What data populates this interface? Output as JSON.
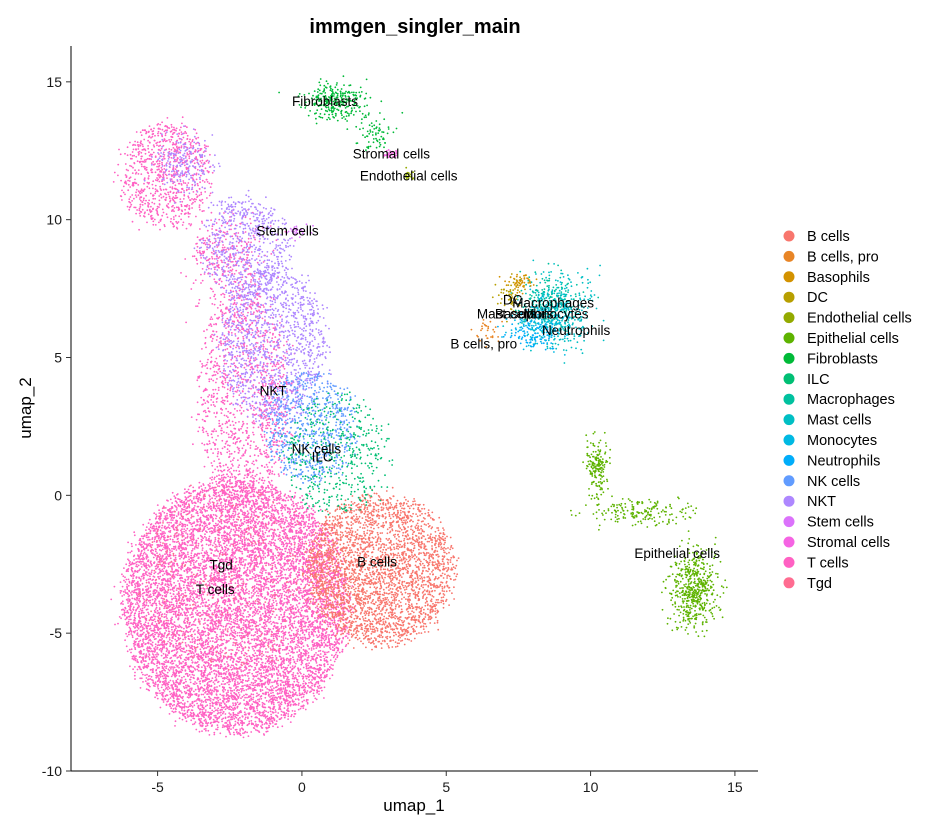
{
  "chart_data": {
    "type": "scatter",
    "title": "immgen_singler_main",
    "xlabel": "umap_1",
    "ylabel": "umap_2",
    "xlim": [
      -8.0,
      15.8
    ],
    "ylim": [
      -10.0,
      16.3
    ],
    "xticks": [
      -5,
      0,
      5,
      10,
      15
    ],
    "yticks": [
      -10,
      -5,
      0,
      5,
      10,
      15
    ],
    "grid": false,
    "legend_position": "right",
    "legend": [
      {
        "name": "B cells",
        "color": "#F8766D"
      },
      {
        "name": "B cells, pro",
        "color": "#E88526"
      },
      {
        "name": "Basophils",
        "color": "#D39200"
      },
      {
        "name": "DC",
        "color": "#B79F00"
      },
      {
        "name": "Endothelial cells",
        "color": "#93AA00"
      },
      {
        "name": "Epithelial cells",
        "color": "#5EB300"
      },
      {
        "name": "Fibroblasts",
        "color": "#00BA38"
      },
      {
        "name": "ILC",
        "color": "#00BF74"
      },
      {
        "name": "Macrophages",
        "color": "#00C19F"
      },
      {
        "name": "Mast cells",
        "color": "#00BFC4"
      },
      {
        "name": "Monocytes",
        "color": "#00B9E3"
      },
      {
        "name": "Neutrophils",
        "color": "#00ADFA"
      },
      {
        "name": "NK cells",
        "color": "#619CFF"
      },
      {
        "name": "NKT",
        "color": "#AE87FF"
      },
      {
        "name": "Stem cells",
        "color": "#DB72FB"
      },
      {
        "name": "Stromal cells",
        "color": "#F564E3"
      },
      {
        "name": "T cells",
        "color": "#FF61C3"
      },
      {
        "name": "Tgd",
        "color": "#FF6C91"
      }
    ],
    "annotations": [
      {
        "text": "Fibroblasts",
        "x": 0.8,
        "y": 14.3
      },
      {
        "text": "Stromal cells",
        "x": 3.1,
        "y": 12.4
      },
      {
        "text": "Endothelial cells",
        "x": 3.7,
        "y": 11.6
      },
      {
        "text": "Stem cells",
        "x": -0.5,
        "y": 9.6
      },
      {
        "text": "DC",
        "x": 7.3,
        "y": 7.1
      },
      {
        "text": "Macrophages",
        "x": 8.7,
        "y": 7.0
      },
      {
        "text": "Mast cells",
        "x": 7.1,
        "y": 6.6
      },
      {
        "text": "Basophils",
        "x": 7.7,
        "y": 6.6
      },
      {
        "text": "Monocytes",
        "x": 8.8,
        "y": 6.6
      },
      {
        "text": "Neutrophils",
        "x": 9.5,
        "y": 6.0
      },
      {
        "text": "B cells, pro",
        "x": 6.3,
        "y": 5.5
      },
      {
        "text": "NKT",
        "x": -1.0,
        "y": 3.8
      },
      {
        "text": "NK cells",
        "x": 0.5,
        "y": 1.7
      },
      {
        "text": "ILC",
        "x": 0.7,
        "y": 1.4
      },
      {
        "text": "B cells",
        "x": 2.6,
        "y": -2.4
      },
      {
        "text": "Tgd",
        "x": -2.8,
        "y": -2.5
      },
      {
        "text": "T cells",
        "x": -3.0,
        "y": -3.4
      },
      {
        "text": "Epithelial cells",
        "x": 13.0,
        "y": -2.1
      }
    ],
    "clusters": [
      {
        "name": "T cells",
        "n": 12000,
        "regions": [
          {
            "cx": -2.3,
            "cy": -4.0,
            "rx": 3.9,
            "ry": 4.6,
            "w": 0.8
          },
          {
            "cx": -2.0,
            "cy": 3.5,
            "rx": 1.6,
            "ry": 4.0,
            "w": 0.1
          },
          {
            "cx": -4.7,
            "cy": 11.6,
            "rx": 1.5,
            "ry": 1.9,
            "w": 0.07
          },
          {
            "cx": -2.5,
            "cy": 8.5,
            "rx": 1.3,
            "ry": 1.6,
            "w": 0.03
          }
        ]
      },
      {
        "name": "B cells",
        "n": 3000,
        "regions": [
          {
            "cx": 2.7,
            "cy": -2.7,
            "rx": 2.5,
            "ry": 2.7,
            "w": 1.0
          }
        ]
      },
      {
        "name": "NKT",
        "n": 2000,
        "regions": [
          {
            "cx": -1.0,
            "cy": 5.5,
            "rx": 1.8,
            "ry": 2.8,
            "w": 0.6
          },
          {
            "cx": -2.0,
            "cy": 9.0,
            "rx": 1.5,
            "ry": 1.8,
            "w": 0.3
          },
          {
            "cx": -4.0,
            "cy": 12.0,
            "rx": 0.9,
            "ry": 1.0,
            "w": 0.1
          }
        ]
      },
      {
        "name": "NK cells",
        "n": 700,
        "regions": [
          {
            "cx": 0.3,
            "cy": 2.5,
            "rx": 1.6,
            "ry": 2.0,
            "w": 1.0
          }
        ]
      },
      {
        "name": "ILC",
        "n": 450,
        "regions": [
          {
            "cx": 1.2,
            "cy": 1.5,
            "rx": 1.8,
            "ry": 2.2,
            "w": 1.0
          }
        ]
      },
      {
        "name": "Tgd",
        "n": 300,
        "regions": [
          {
            "cx": -2.5,
            "cy": -3.0,
            "rx": 3.2,
            "ry": 3.4,
            "w": 1.0
          }
        ]
      },
      {
        "name": "Fibroblasts",
        "n": 350,
        "regions": [
          {
            "cx": 1.2,
            "cy": 14.3,
            "rx": 1.0,
            "ry": 0.6,
            "w": 0.8
          },
          {
            "cx": 2.5,
            "cy": 13.2,
            "rx": 0.5,
            "ry": 0.6,
            "w": 0.2
          }
        ]
      },
      {
        "name": "Stromal cells",
        "n": 25,
        "regions": [
          {
            "cx": 3.1,
            "cy": 12.4,
            "rx": 0.3,
            "ry": 0.2,
            "w": 1.0
          }
        ]
      },
      {
        "name": "Endothelial cells",
        "n": 20,
        "regions": [
          {
            "cx": 3.7,
            "cy": 11.6,
            "rx": 0.15,
            "ry": 0.15,
            "w": 1.0
          }
        ]
      },
      {
        "name": "Stem cells",
        "n": 30,
        "regions": [
          {
            "cx": -0.2,
            "cy": 9.6,
            "rx": 0.5,
            "ry": 0.2,
            "w": 1.0
          }
        ]
      },
      {
        "name": "Macrophages",
        "n": 200,
        "regions": [
          {
            "cx": 8.5,
            "cy": 7.0,
            "rx": 1.0,
            "ry": 0.9,
            "w": 1.0
          }
        ]
      },
      {
        "name": "Mast cells",
        "n": 400,
        "regions": [
          {
            "cx": 8.9,
            "cy": 6.6,
            "rx": 1.1,
            "ry": 1.2,
            "w": 1.0
          }
        ]
      },
      {
        "name": "Monocytes",
        "n": 150,
        "regions": [
          {
            "cx": 8.2,
            "cy": 6.2,
            "rx": 0.9,
            "ry": 0.8,
            "w": 1.0
          }
        ]
      },
      {
        "name": "Neutrophils",
        "n": 100,
        "regions": [
          {
            "cx": 8.0,
            "cy": 5.9,
            "rx": 0.8,
            "ry": 0.6,
            "w": 1.0
          }
        ]
      },
      {
        "name": "DC",
        "n": 60,
        "regions": [
          {
            "cx": 7.2,
            "cy": 7.2,
            "rx": 0.5,
            "ry": 0.6,
            "w": 1.0
          }
        ]
      },
      {
        "name": "Basophils",
        "n": 50,
        "regions": [
          {
            "cx": 7.6,
            "cy": 7.7,
            "rx": 0.4,
            "ry": 0.3,
            "w": 1.0
          }
        ]
      },
      {
        "name": "B cells, pro",
        "n": 30,
        "regions": [
          {
            "cx": 6.5,
            "cy": 6.0,
            "rx": 0.5,
            "ry": 0.5,
            "w": 1.0
          }
        ]
      },
      {
        "name": "Epithelial cells",
        "n": 900,
        "regions": [
          {
            "cx": 13.6,
            "cy": -3.4,
            "rx": 0.7,
            "ry": 1.3,
            "w": 0.6
          },
          {
            "cx": 10.2,
            "cy": 1.0,
            "rx": 0.35,
            "ry": 1.0,
            "w": 0.2
          },
          {
            "cx": 11.8,
            "cy": -0.6,
            "rx": 1.6,
            "ry": 0.45,
            "w": 0.2
          }
        ]
      }
    ]
  }
}
